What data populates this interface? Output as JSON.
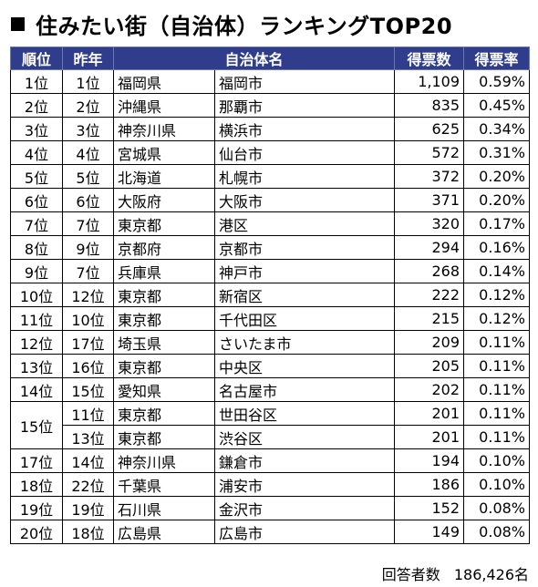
{
  "title": "住みたい街（自治体）ランキングTOP20",
  "columns": {
    "rank": "順位",
    "last_year": "昨年",
    "municipality": "自治体名",
    "votes": "得票数",
    "vote_rate": "得票率"
  },
  "rows": [
    {
      "rank": "1位",
      "last": "1位",
      "pref": "福岡県",
      "city": "福岡市",
      "votes": "1,109",
      "rate": "0.59%"
    },
    {
      "rank": "2位",
      "last": "2位",
      "pref": "沖縄県",
      "city": "那覇市",
      "votes": "835",
      "rate": "0.45%"
    },
    {
      "rank": "3位",
      "last": "3位",
      "pref": "神奈川県",
      "city": "横浜市",
      "votes": "625",
      "rate": "0.34%"
    },
    {
      "rank": "4位",
      "last": "4位",
      "pref": "宮城県",
      "city": "仙台市",
      "votes": "572",
      "rate": "0.31%"
    },
    {
      "rank": "5位",
      "last": "5位",
      "pref": "北海道",
      "city": "札幌市",
      "votes": "372",
      "rate": "0.20%"
    },
    {
      "rank": "6位",
      "last": "6位",
      "pref": "大阪府",
      "city": "大阪市",
      "votes": "371",
      "rate": "0.20%"
    },
    {
      "rank": "7位",
      "last": "7位",
      "pref": "東京都",
      "city": "港区",
      "votes": "320",
      "rate": "0.17%"
    },
    {
      "rank": "8位",
      "last": "9位",
      "pref": "京都府",
      "city": "京都市",
      "votes": "294",
      "rate": "0.16%"
    },
    {
      "rank": "9位",
      "last": "7位",
      "pref": "兵庫県",
      "city": "神戸市",
      "votes": "268",
      "rate": "0.14%"
    },
    {
      "rank": "10位",
      "last": "12位",
      "pref": "東京都",
      "city": "新宿区",
      "votes": "222",
      "rate": "0.12%"
    },
    {
      "rank": "11位",
      "last": "10位",
      "pref": "東京都",
      "city": "千代田区",
      "votes": "215",
      "rate": "0.12%"
    },
    {
      "rank": "12位",
      "last": "17位",
      "pref": "埼玉県",
      "city": "さいたま市",
      "votes": "209",
      "rate": "0.11%"
    },
    {
      "rank": "13位",
      "last": "16位",
      "pref": "東京都",
      "city": "中央区",
      "votes": "205",
      "rate": "0.11%"
    },
    {
      "rank": "14位",
      "last": "15位",
      "pref": "愛知県",
      "city": "名古屋市",
      "votes": "202",
      "rate": "0.11%"
    },
    {
      "rank": "15位",
      "last": "11位",
      "pref": "東京都",
      "city": "世田谷区",
      "votes": "201",
      "rate": "0.11%"
    },
    {
      "rank": "15位",
      "last": "13位",
      "pref": "東京都",
      "city": "渋谷区",
      "votes": "201",
      "rate": "0.11%"
    },
    {
      "rank": "17位",
      "last": "14位",
      "pref": "神奈川県",
      "city": "鎌倉市",
      "votes": "194",
      "rate": "0.10%"
    },
    {
      "rank": "18位",
      "last": "22位",
      "pref": "千葉県",
      "city": "浦安市",
      "votes": "186",
      "rate": "0.10%"
    },
    {
      "rank": "19位",
      "last": "19位",
      "pref": "石川県",
      "city": "金沢市",
      "votes": "152",
      "rate": "0.08%"
    },
    {
      "rank": "20位",
      "last": "18位",
      "pref": "広島県",
      "city": "広島市",
      "votes": "149",
      "rate": "0.08%"
    }
  ],
  "footer": {
    "respondents_label": "回答者数",
    "respondents_value": "186,426名"
  }
}
